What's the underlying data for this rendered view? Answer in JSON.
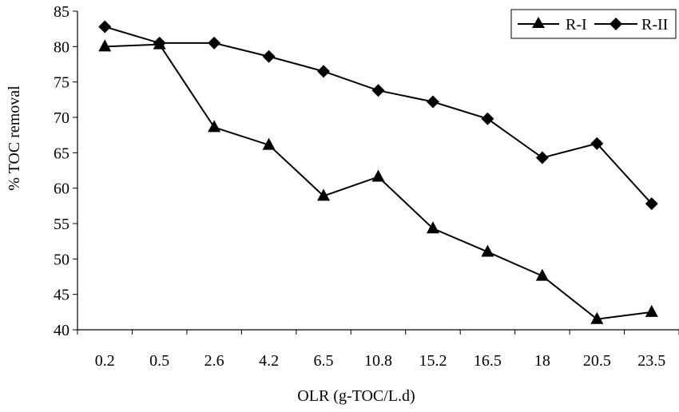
{
  "chart_data": {
    "type": "line",
    "title": "",
    "xlabel": "OLR (g-TOC/L.d)",
    "ylabel": "% TOC removal",
    "categories": [
      "0.2",
      "0.5",
      "2.6",
      "4.2",
      "6.5",
      "10.8",
      "15.2",
      "16.5",
      "18",
      "20.5",
      "23.5"
    ],
    "ylim": [
      40,
      85
    ],
    "yticks": [
      40,
      45,
      50,
      55,
      60,
      65,
      70,
      75,
      80,
      85
    ],
    "grid": false,
    "legend_position": "top-right",
    "series": [
      {
        "name": "R-I",
        "marker": "triangle",
        "color": "#000000",
        "values": [
          80.0,
          80.3,
          68.6,
          66.1,
          58.9,
          61.6,
          54.3,
          51.0,
          47.6,
          41.5,
          42.5
        ]
      },
      {
        "name": "R-II",
        "marker": "diamond",
        "color": "#000000",
        "values": [
          82.8,
          80.5,
          80.5,
          78.6,
          76.5,
          73.8,
          72.2,
          69.8,
          64.3,
          66.3,
          57.8
        ]
      }
    ]
  }
}
